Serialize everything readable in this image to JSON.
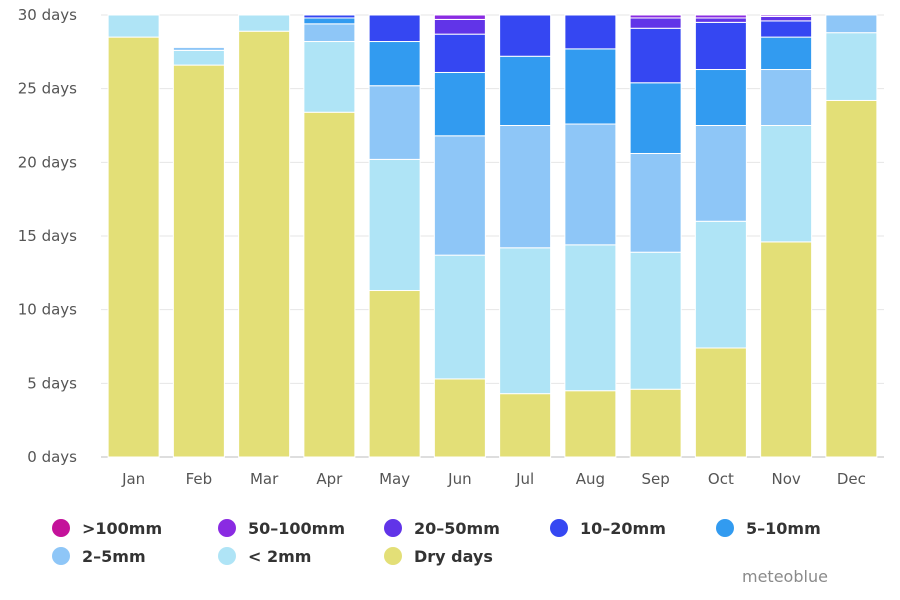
{
  "chart_data": {
    "type": "bar",
    "stacked": true,
    "categories": [
      "Jan",
      "Feb",
      "Mar",
      "Apr",
      "May",
      "Jun",
      "Jul",
      "Aug",
      "Sep",
      "Oct",
      "Nov",
      "Dec"
    ],
    "y_tick_labels": [
      "0 days",
      "5 days",
      "10 days",
      "15 days",
      "20 days",
      "25 days",
      "30 days"
    ],
    "ylim": [
      0,
      30
    ],
    "grid": true,
    "legend_position": "bottom",
    "series": [
      {
        "name": "Dry days",
        "color": "#e3df77",
        "values": [
          28.5,
          26.6,
          28.9,
          23.4,
          11.3,
          5.3,
          4.3,
          4.5,
          4.6,
          7.4,
          14.6,
          24.2
        ]
      },
      {
        "name": "< 2mm",
        "color": "#afe4f6",
        "values": [
          1.5,
          1.0,
          1.1,
          4.8,
          8.9,
          8.4,
          9.9,
          9.9,
          9.3,
          8.6,
          7.9,
          4.6
        ]
      },
      {
        "name": "2-5mm",
        "color": "#8ec6f7",
        "values": [
          0.0,
          0.2,
          0.0,
          1.2,
          5.0,
          8.1,
          8.3,
          8.2,
          6.7,
          6.5,
          3.8,
          1.2
        ]
      },
      {
        "name": "5-10mm",
        "color": "#329bf0",
        "values": [
          0.0,
          0.0,
          0.0,
          0.4,
          3.0,
          4.3,
          4.7,
          5.1,
          4.8,
          3.8,
          2.2,
          0.0
        ]
      },
      {
        "name": "10-20mm",
        "color": "#3547f2",
        "values": [
          0.0,
          0.0,
          0.0,
          0.2,
          1.8,
          2.6,
          2.8,
          2.3,
          3.7,
          3.2,
          1.1,
          0.0
        ]
      },
      {
        "name": "20-50mm",
        "color": "#6134e8",
        "values": [
          0.0,
          0.0,
          0.0,
          0.0,
          0.0,
          1.0,
          0.0,
          0.0,
          0.7,
          0.3,
          0.3,
          0.0
        ]
      },
      {
        "name": "50-100mm",
        "color": "#8a2be2",
        "values": [
          0.0,
          0.0,
          0.0,
          0.0,
          0.0,
          0.3,
          0.0,
          0.0,
          0.2,
          0.2,
          0.1,
          0.0
        ]
      },
      {
        "name": ">100mm",
        "color": "#c4129a",
        "values": [
          0.0,
          0.0,
          0.0,
          0.0,
          0.0,
          0.0,
          0.0,
          0.0,
          0.0,
          0.0,
          0.0,
          0.0
        ]
      }
    ]
  },
  "legend": {
    "rows": [
      [
        {
          "label": ">100mm",
          "color": "#c4129a",
          "icon": "circle"
        },
        {
          "label": "50–100mm",
          "color": "#8a2be2",
          "icon": "circle"
        },
        {
          "label": "20–50mm",
          "color": "#6134e8",
          "icon": "circle"
        },
        {
          "label": "10–20mm",
          "color": "#3547f2",
          "icon": "circle"
        },
        {
          "label": "5–10mm",
          "color": "#329bf0",
          "icon": "circle"
        }
      ],
      [
        {
          "label": "2–5mm",
          "color": "#8ec6f7",
          "icon": "circle"
        },
        {
          "label": "< 2mm",
          "color": "#afe4f6",
          "icon": "circle"
        },
        {
          "label": "Dry days",
          "color": "#e3df77",
          "icon": "circle"
        }
      ]
    ]
  },
  "credit": "meteoblue"
}
